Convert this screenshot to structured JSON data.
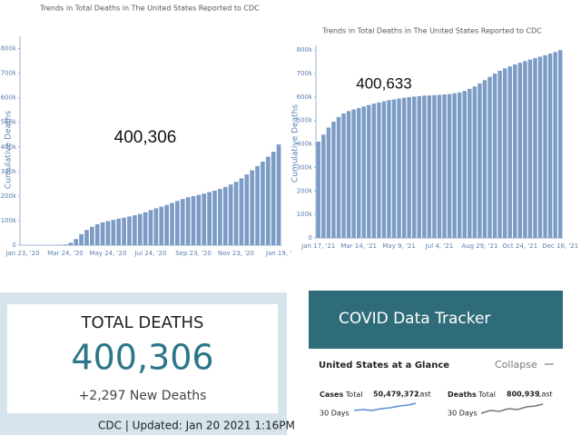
{
  "chart_data": [
    {
      "type": "bar",
      "title": "Trends in Total Deaths in The United States Reported to CDC",
      "ylabel": "Cumulative Deaths",
      "annotation": "400,306",
      "color": "#7c9cc6",
      "categories": [
        "Jan 23, '20",
        null,
        null,
        null,
        null,
        null,
        null,
        null,
        "Mar 24, '20",
        null,
        null,
        null,
        null,
        null,
        null,
        null,
        "May 24, '20",
        null,
        null,
        null,
        null,
        null,
        null,
        null,
        "Jul 24, '20",
        null,
        null,
        null,
        null,
        null,
        null,
        null,
        "Sep 23, '20",
        null,
        null,
        null,
        null,
        null,
        null,
        null,
        "Nov 23, '20",
        null,
        null,
        null,
        null,
        null,
        null,
        null,
        "Jan 19, '"
      ],
      "values": [
        0,
        0,
        0,
        0,
        0,
        0,
        0,
        500,
        3000,
        10000,
        25000,
        45000,
        62000,
        75000,
        85000,
        93000,
        98000,
        103000,
        108000,
        112000,
        117000,
        122000,
        127000,
        134000,
        143000,
        150000,
        157000,
        164000,
        172000,
        180000,
        188000,
        195000,
        200000,
        205000,
        210000,
        216000,
        222000,
        229000,
        237000,
        247000,
        258000,
        272000,
        288000,
        305000,
        322000,
        340000,
        360000,
        380000,
        410000
      ],
      "ylim": [
        0,
        850000
      ],
      "yticks": [
        0,
        {
          "value": 100000,
          "label": "100k"
        },
        {
          "value": 200000,
          "label": "200k"
        },
        {
          "value": 300000,
          "label": "300k"
        },
        {
          "value": 400000,
          "label": "400k"
        },
        {
          "value": 500000,
          "label": "500k"
        },
        {
          "value": 600000,
          "label": "600k"
        },
        {
          "value": 700000,
          "label": "700k"
        },
        {
          "value": 800000,
          "label": "800k"
        }
      ]
    },
    {
      "type": "bar",
      "title": "Trends in Total Deaths in The United States Reported to CDC",
      "ylabel": "Cumulative Deaths",
      "annotation": "400,633",
      "color": "#7c9cc6",
      "categories": [
        "Jan 17, '21",
        null,
        null,
        null,
        null,
        null,
        null,
        null,
        "Mar 14, '21",
        null,
        null,
        null,
        null,
        null,
        null,
        null,
        "May 9, '21",
        null,
        null,
        null,
        null,
        null,
        null,
        null,
        "Jul 4, '21",
        null,
        null,
        null,
        null,
        null,
        null,
        null,
        "Aug 29, '21",
        null,
        null,
        null,
        null,
        null,
        null,
        null,
        "Oct 24, '21",
        null,
        null,
        null,
        null,
        null,
        null,
        null,
        "Dec 16, '21"
      ],
      "values": [
        410000,
        440000,
        470000,
        495000,
        515000,
        530000,
        540000,
        547000,
        553000,
        560000,
        566000,
        572000,
        577000,
        582000,
        587000,
        590000,
        594000,
        597000,
        600000,
        602000,
        604000,
        606000,
        607000,
        608000,
        609000,
        611000,
        613000,
        616000,
        620000,
        626000,
        635000,
        645000,
        658000,
        672000,
        686000,
        700000,
        712000,
        722000,
        731000,
        739000,
        746000,
        753000,
        760000,
        766000,
        772000,
        778000,
        785000,
        792000,
        800000
      ],
      "ylim": [
        0,
        820000
      ],
      "yticks": [
        0,
        {
          "value": 100000,
          "label": "100k"
        },
        {
          "value": 200000,
          "label": "200k"
        },
        {
          "value": 300000,
          "label": "300k"
        },
        {
          "value": 400000,
          "label": "400k"
        },
        {
          "value": 500000,
          "label": "500k"
        },
        {
          "value": 600000,
          "label": "600k"
        },
        {
          "value": 700000,
          "label": "700k"
        },
        {
          "value": 800000,
          "label": "800k"
        }
      ]
    }
  ],
  "card": {
    "title": "TOTAL DEATHS",
    "total": "400,306",
    "new": "+2,297 New Deaths",
    "footer": "CDC | Updated: Jan 20 2021 1:16PM"
  },
  "tracker": {
    "header": "COVID Data Tracker",
    "section": "United States at a Glance",
    "collapse": "Collapse",
    "cases": {
      "label": "Cases",
      "total_label": "Total",
      "total": "50,479,372",
      "last": "Last",
      "period": "30 Days"
    },
    "deaths": {
      "label": "Deaths",
      "total_label": "Total",
      "total": "800,939",
      "last": "Last",
      "period": "30 Days"
    }
  }
}
